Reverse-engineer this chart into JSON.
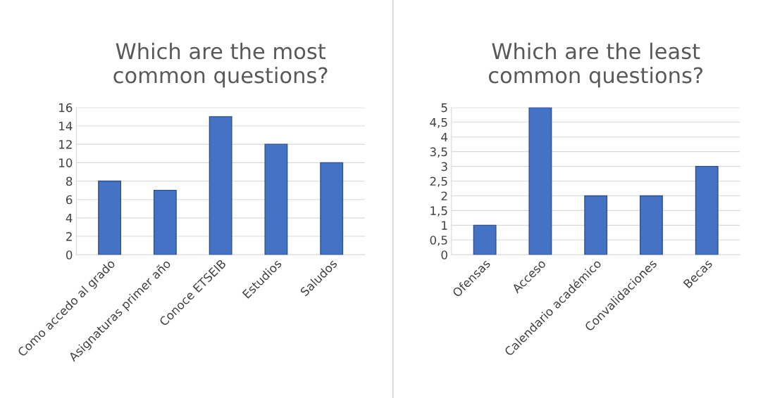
{
  "chart_data": [
    {
      "type": "bar",
      "title": "Which are the most\ncommon questions?",
      "categories": [
        "Como accedo al grado",
        "Asignaturas primer año",
        "Conoce ETSEIB",
        "Estudios",
        "Saludos"
      ],
      "values": [
        8,
        7,
        15,
        12,
        10
      ],
      "color": "#4472c4",
      "ylim": [
        0,
        16
      ],
      "yticks": [
        0,
        2,
        4,
        6,
        8,
        10,
        12,
        14,
        16
      ],
      "grid": "y"
    },
    {
      "type": "bar",
      "title": "Which are the least\ncommon questions?",
      "categories": [
        "Ofensas",
        "Acceso",
        "Calendario académico",
        "Convalidaciones",
        "Becas"
      ],
      "values": [
        1,
        5,
        2,
        2,
        3
      ],
      "color": "#4472c4",
      "ylim": [
        0,
        5
      ],
      "yticks": [
        0,
        {
          "value": 0.5,
          "label": "0,5"
        },
        1,
        {
          "value": 1.5,
          "label": "1,5"
        },
        2,
        {
          "value": 2.5,
          "label": "2,5"
        },
        3,
        {
          "value": 3.5,
          "label": "3,5"
        },
        4,
        {
          "value": 4.5,
          "label": "4,5"
        },
        5
      ],
      "grid": "y"
    }
  ]
}
